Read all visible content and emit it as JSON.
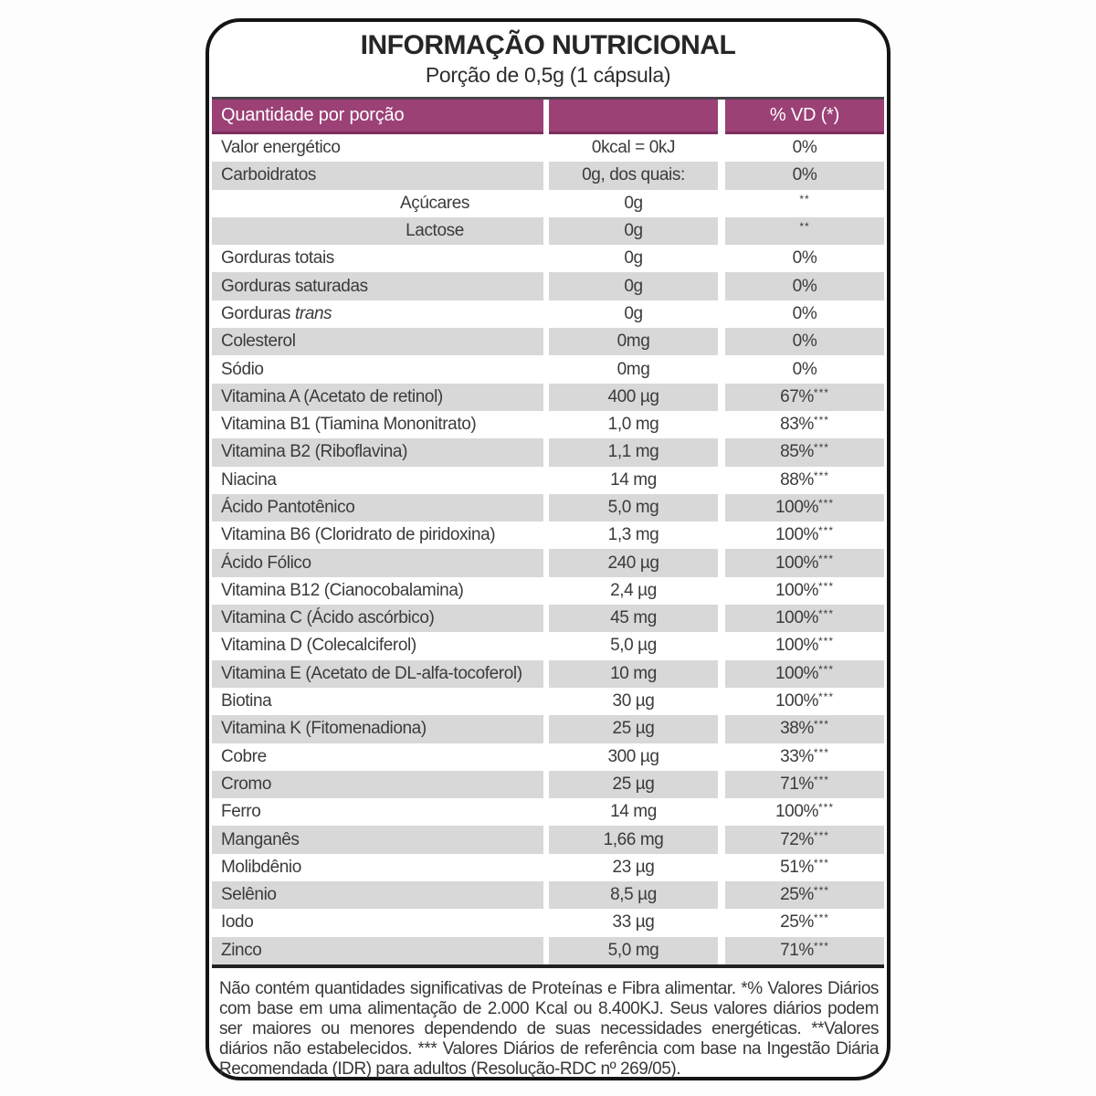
{
  "theme": {
    "header_bg": "#9b4176",
    "header_border": "#7c2f5f",
    "header_text": "#ffffff",
    "stripe_bg": "#d8d8d8",
    "text_color": "#3b3b3b",
    "rule_color": "#222222"
  },
  "title": "INFORMAÇÃO NUTRICIONAL",
  "subtitle": "Porção de 0,5g (1 cápsula)",
  "table": {
    "header": {
      "col1": "Quantidade por porção",
      "col2": "",
      "col3": "% VD (*)"
    },
    "rows": [
      {
        "label": "Valor energético",
        "value": "0kcal = 0kJ",
        "vd": "0%"
      },
      {
        "label": "Carboidratos",
        "value": "0g, dos quais:",
        "vd": "0%"
      },
      {
        "label": "Açúcares",
        "value": "0g",
        "vd": "",
        "vd_sup": "**",
        "indent": true
      },
      {
        "label": "Lactose",
        "value": "0g",
        "vd": "",
        "vd_sup": "**",
        "indent": true
      },
      {
        "label": "Gorduras totais",
        "value": "0g",
        "vd": "0%"
      },
      {
        "label": "Gorduras saturadas",
        "value": "0g",
        "vd": "0%"
      },
      {
        "label": "Gorduras",
        "label_italic": "trans",
        "value": "0g",
        "vd": "0%"
      },
      {
        "label": "Colesterol",
        "value": "0mg",
        "vd": "0%"
      },
      {
        "label": "Sódio",
        "value": "0mg",
        "vd": "0%"
      },
      {
        "label": "Vitamina A (Acetato de retinol)",
        "value": "400 µg",
        "vd": "67%",
        "vd_sup": "***"
      },
      {
        "label": "Vitamina B1 (Tiamina Mononitrato)",
        "value": "1,0 mg",
        "vd": "83%",
        "vd_sup": "***"
      },
      {
        "label": "Vitamina B2 (Riboflavina)",
        "value": "1,1 mg",
        "vd": "85%",
        "vd_sup": "***"
      },
      {
        "label": "Niacina",
        "value": "14 mg",
        "vd": "88%",
        "vd_sup": "***"
      },
      {
        "label": "Ácido Pantotênico",
        "value": "5,0 mg",
        "vd": "100%",
        "vd_sup": "***"
      },
      {
        "label": "Vitamina B6 (Cloridrato de piridoxina)",
        "value": "1,3 mg",
        "vd": "100%",
        "vd_sup": "***"
      },
      {
        "label": "Ácido Fólico",
        "value": "240 µg",
        "vd": "100%",
        "vd_sup": "***"
      },
      {
        "label": "Vitamina B12 (Cianocobalamina)",
        "value": "2,4 µg",
        "vd": "100%",
        "vd_sup": "***"
      },
      {
        "label": "Vitamina C (Ácido ascórbico)",
        "value": "45 mg",
        "vd": "100%",
        "vd_sup": "***"
      },
      {
        "label": "Vitamina D (Colecalciferol)",
        "value": "5,0 µg",
        "vd": "100%",
        "vd_sup": "***"
      },
      {
        "label": "Vitamina E (Acetato de DL-alfa-tocoferol)",
        "value": "10 mg",
        "vd": "100%",
        "vd_sup": "***"
      },
      {
        "label": "Biotina",
        "value": "30 µg",
        "vd": "100%",
        "vd_sup": "***"
      },
      {
        "label": "Vitamina K (Fitomenadiona)",
        "value": "25 µg",
        "vd": "38%",
        "vd_sup": "***"
      },
      {
        "label": "Cobre",
        "value": "300 µg",
        "vd": "33%",
        "vd_sup": "***"
      },
      {
        "label": "Cromo",
        "value": "25 µg",
        "vd": "71%",
        "vd_sup": "***"
      },
      {
        "label": "Ferro",
        "value": "14 mg",
        "vd": "100%",
        "vd_sup": "***"
      },
      {
        "label": "Manganês",
        "value": "1,66 mg",
        "vd": "72%",
        "vd_sup": "***"
      },
      {
        "label": "Molibdênio",
        "value": "23 µg",
        "vd": "51%",
        "vd_sup": "***"
      },
      {
        "label": "Selênio",
        "value": "8,5 µg",
        "vd": "25%",
        "vd_sup": "***"
      },
      {
        "label": "Iodo",
        "value": "33 µg",
        "vd": "25%",
        "vd_sup": "***"
      },
      {
        "label": "Zinco",
        "value": "5,0 mg",
        "vd": "71%",
        "vd_sup": "***"
      }
    ]
  },
  "footnote": "Não contém quantidades significativas de Proteínas e Fibra alimentar. *% Valores Diários com base em uma alimentação de 2.000 Kcal ou 8.400KJ. Seus valores diários podem ser maiores ou menores dependendo de suas necessidades energéticas. **Valores diários não estabelecidos. *** Valores Diários de referência com base na Ingestão Diária Recomendada (IDR) para adultos (Resolução-RDC nº 269/05)."
}
